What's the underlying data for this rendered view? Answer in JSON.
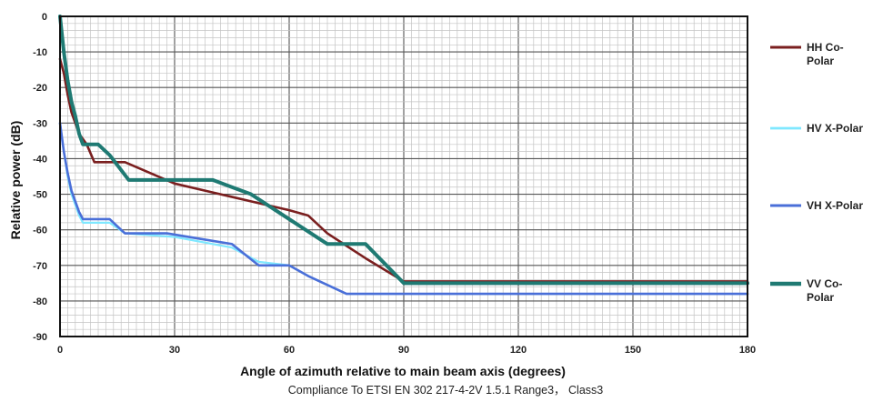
{
  "chart_data": {
    "type": "line",
    "title": "",
    "xlabel": "Angle of azimuth relative to main beam axis (degrees)",
    "ylabel": "Relative power (dB)",
    "caption": "Compliance To ETSI EN 302 217-4-2V 1.5.1 Range3， Class3",
    "xlim": [
      0,
      180
    ],
    "ylim": [
      -90,
      0
    ],
    "xticks": [
      0,
      30,
      60,
      90,
      120,
      150,
      180
    ],
    "yticks": [
      0,
      -10,
      -20,
      -30,
      -40,
      -50,
      -60,
      -70,
      -80,
      -90
    ],
    "grid": true,
    "legend_position": "right",
    "series": [
      {
        "name_lines": [
          "HH Co-",
          "Polar"
        ],
        "color": "#7a1f1f",
        "points": [
          [
            0,
            -12
          ],
          [
            1,
            -16
          ],
          [
            2,
            -22
          ],
          [
            3,
            -27
          ],
          [
            5,
            -33
          ],
          [
            7,
            -36
          ],
          [
            9,
            -41
          ],
          [
            17,
            -41
          ],
          [
            30,
            -47
          ],
          [
            40,
            -49.5
          ],
          [
            50,
            -52
          ],
          [
            60,
            -54.5
          ],
          [
            65,
            -56
          ],
          [
            70,
            -61
          ],
          [
            80,
            -68
          ],
          [
            90,
            -74.5
          ],
          [
            180,
            -74.5
          ]
        ]
      },
      {
        "name_lines": [
          "HV X-Polar"
        ],
        "color": "#7fe8ff",
        "points": [
          [
            0,
            -30
          ],
          [
            1,
            -38
          ],
          [
            2,
            -45
          ],
          [
            3,
            -50
          ],
          [
            5,
            -56
          ],
          [
            6,
            -58
          ],
          [
            13,
            -58
          ],
          [
            17,
            -61
          ],
          [
            30,
            -62
          ],
          [
            45,
            -65
          ],
          [
            52,
            -69
          ],
          [
            60,
            -70
          ],
          [
            65,
            -73
          ],
          [
            75,
            -78
          ],
          [
            180,
            -78
          ]
        ]
      },
      {
        "name_lines": [
          "VH X-Polar"
        ],
        "color": "#4a6fd8",
        "points": [
          [
            0,
            -30
          ],
          [
            1,
            -38
          ],
          [
            2,
            -44
          ],
          [
            3,
            -49
          ],
          [
            5,
            -55
          ],
          [
            6,
            -57
          ],
          [
            13,
            -57
          ],
          [
            17,
            -61
          ],
          [
            28,
            -61
          ],
          [
            45,
            -64
          ],
          [
            52,
            -70
          ],
          [
            60,
            -70
          ],
          [
            65,
            -73
          ],
          [
            75,
            -78
          ],
          [
            180,
            -78
          ]
        ]
      },
      {
        "name_lines": [
          "VV Co-",
          "Polar"
        ],
        "color": "#1f7a73",
        "points": [
          [
            0,
            0
          ],
          [
            1,
            -10
          ],
          [
            2,
            -18
          ],
          [
            3,
            -24
          ],
          [
            4,
            -28
          ],
          [
            5,
            -33
          ],
          [
            6,
            -36
          ],
          [
            8,
            -36
          ],
          [
            10,
            -36
          ],
          [
            13,
            -39
          ],
          [
            18,
            -46
          ],
          [
            30,
            -46
          ],
          [
            40,
            -46
          ],
          [
            50,
            -50
          ],
          [
            60,
            -57
          ],
          [
            70,
            -64
          ],
          [
            80,
            -64
          ],
          [
            90,
            -75
          ],
          [
            180,
            -75
          ]
        ]
      }
    ]
  }
}
